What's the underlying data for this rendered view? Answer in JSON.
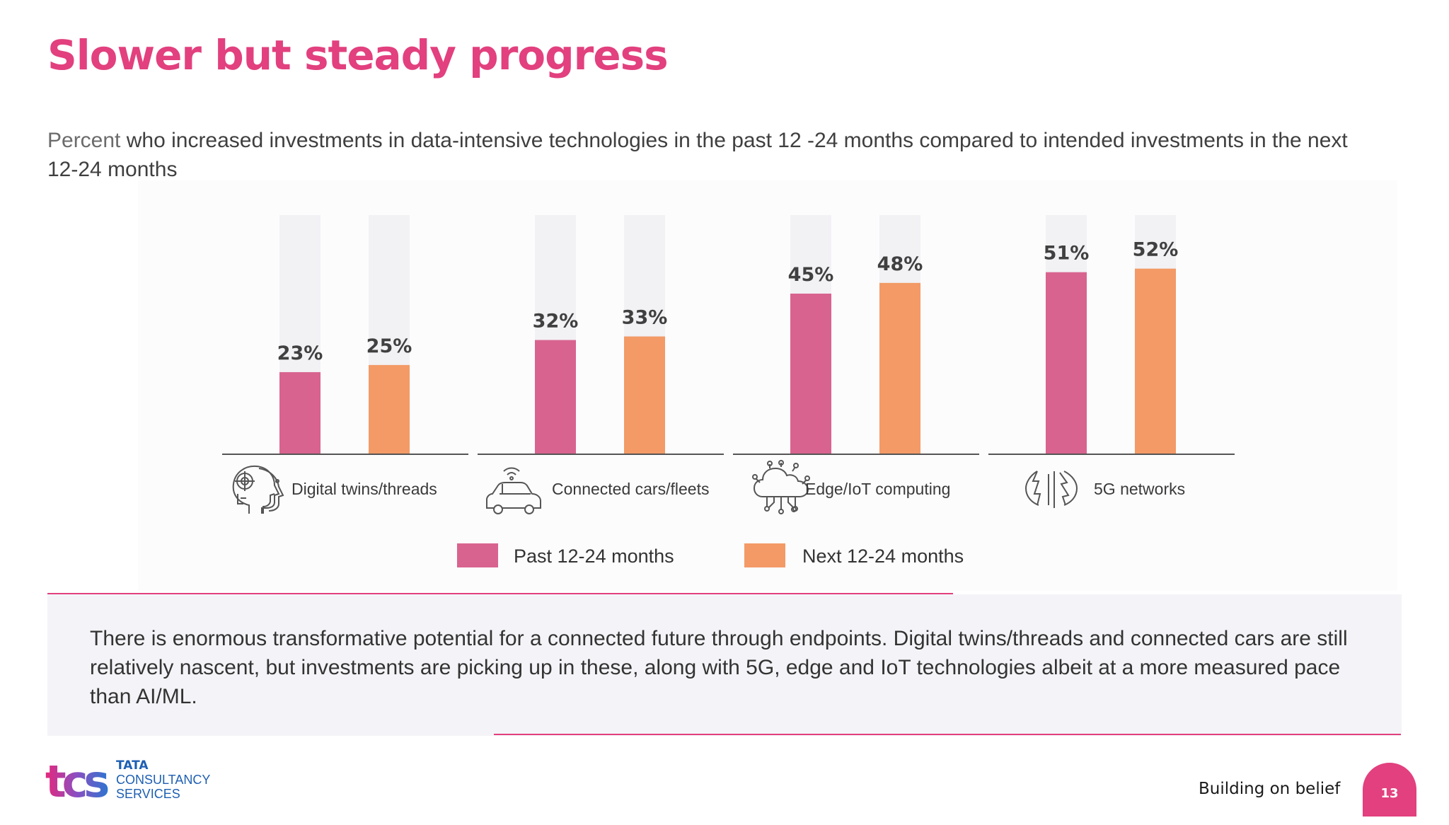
{
  "slide": {
    "title": "Slower but steady progress",
    "subtitle_muted": "Percent",
    "subtitle_rest": " who increased investments in data-intensive technologies in the past 12 -24 months compared to intended investments in the next 12-24 months",
    "callout": "There is enormous transformative potential for a connected future through endpoints. Digital twins/threads and connected cars are still relatively nascent, but investments are picking up in these, along with 5G, edge and IoT technologies albeit at a more measured pace than AI/ML.",
    "tagline": "Building on belief",
    "page_number": "13",
    "logo": {
      "mark": "tcs",
      "line1": "TATA",
      "line2": "CONSULTANCY",
      "line3": "SERVICES"
    }
  },
  "chart_data": {
    "type": "bar",
    "categories": [
      "Digital twins/threads",
      "Connected cars/fleets",
      "Edge/IoT computing",
      "5G networks"
    ],
    "category_icons": [
      "head-network-icon",
      "connected-car-icon",
      "cloud-iot-icon",
      "5g-network-icon"
    ],
    "series": [
      {
        "name": "Past 12-24 months",
        "values": [
          23,
          32,
          45,
          51
        ],
        "color": "#d9638f"
      },
      {
        "name": "Next 12-24 months",
        "values": [
          25,
          33,
          48,
          52
        ],
        "color": "#f39a66"
      }
    ],
    "value_labels": [
      [
        "23%",
        "32%",
        "45%",
        "51%"
      ],
      [
        "25%",
        "33%",
        "48%",
        "52%"
      ]
    ],
    "ylim": [
      0,
      100
    ],
    "legend_position": "bottom",
    "track_color": "#f2f1f4",
    "grid": false
  }
}
